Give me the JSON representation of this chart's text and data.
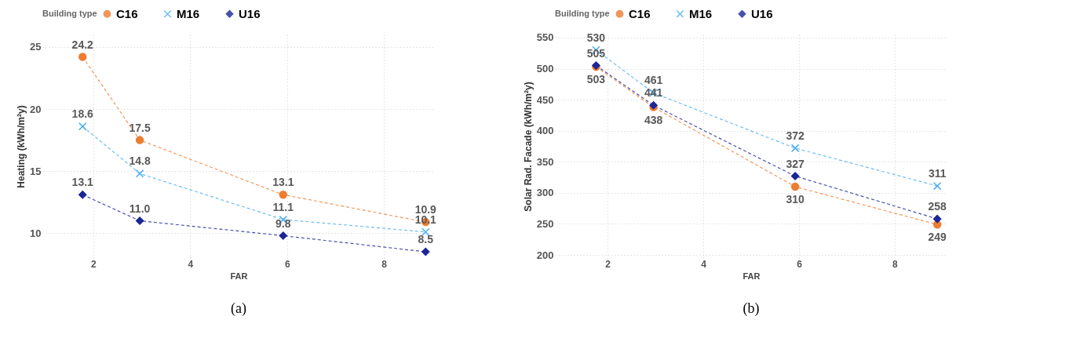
{
  "chart_data": [
    {
      "type": "line",
      "xlabel": "FAR",
      "ylabel": "Heating (kWh/m²y)",
      "legend_title": "Building type",
      "legend": "top",
      "grid": true,
      "line_style": "dashed",
      "x": [
        1.78,
        2.96,
        5.92,
        8.86
      ],
      "xlim": [
        0.95,
        9.05
      ],
      "xticks": [
        2,
        4,
        6,
        8
      ],
      "ylim": [
        8,
        26
      ],
      "yticks": [
        10,
        15,
        20,
        25
      ],
      "annotations": [
        "(a)"
      ],
      "series": [
        {
          "name": "C16",
          "color": "#ed7d31",
          "marker": "circle",
          "values": [
            24.2,
            17.5,
            13.1,
            10.9
          ],
          "value_labels": [
            "24.2",
            "17.5",
            "13.1",
            "10.9"
          ]
        },
        {
          "name": "M16",
          "color": "#4aaef0",
          "marker": "cross",
          "values": [
            18.6,
            14.8,
            11.1,
            10.1
          ],
          "value_labels": [
            "18.6",
            "14.8",
            "11.1",
            "10.1"
          ]
        },
        {
          "name": "U16",
          "color": "#1c2796",
          "marker": "diamond",
          "values": [
            13.1,
            11.0,
            9.8,
            8.5
          ],
          "value_labels": [
            "13.1",
            "11.0",
            "9.8",
            "8.5"
          ]
        }
      ]
    },
    {
      "type": "line",
      "xlabel": "FAR",
      "ylabel": "Solar Rad. Facade (kWh/m²y)",
      "legend_title": "Building type",
      "legend": "top",
      "grid": true,
      "line_style": "dashed",
      "data_labels": true,
      "x": [
        1.76,
        2.96,
        5.92,
        8.89
      ],
      "xlim": [
        0.9,
        9.1
      ],
      "xticks": [
        2,
        4,
        6,
        8
      ],
      "ylim": [
        195,
        555
      ],
      "yticks": [
        200,
        250,
        300,
        350,
        400,
        450,
        500,
        550
      ],
      "annotations": [
        "(b)"
      ],
      "series": [
        {
          "name": "C16",
          "color": "#ed7d31",
          "marker": "circle",
          "values": [
            503,
            438,
            310,
            249
          ]
        },
        {
          "name": "M16",
          "color": "#4aaef0",
          "marker": "cross",
          "values": [
            530,
            461,
            372,
            311
          ]
        },
        {
          "name": "U16",
          "color": "#1c2796",
          "marker": "diamond",
          "values": [
            505,
            441,
            327,
            258
          ]
        }
      ]
    }
  ]
}
